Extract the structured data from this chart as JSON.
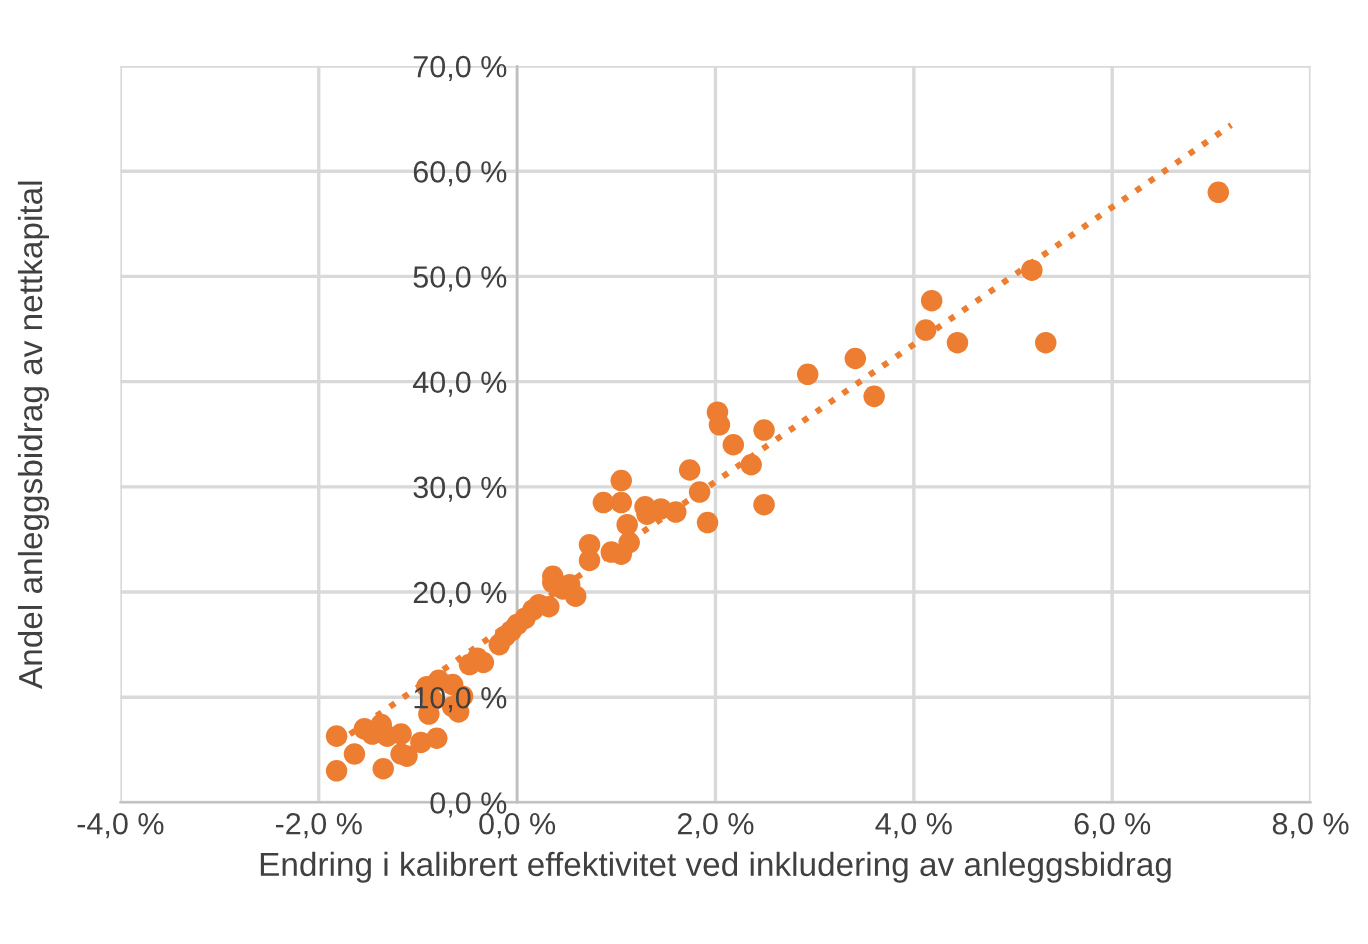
{
  "chart_data": {
    "type": "scatter",
    "xlabel": "Endring i kalibrert effektivitet ved inkludering av anleggsbidrag",
    "ylabel": "Andel anleggsbidrag av nettkapital",
    "xlim": [
      -4,
      8
    ],
    "ylim": [
      0,
      70
    ],
    "xticks": [
      {
        "value": -4,
        "label": "-4,0 %"
      },
      {
        "value": -2,
        "label": "-2,0 %"
      },
      {
        "value": 0,
        "label": "0,0 %"
      },
      {
        "value": 2,
        "label": "2,0 %"
      },
      {
        "value": 4,
        "label": "4,0 %"
      },
      {
        "value": 6,
        "label": "6,0 %"
      },
      {
        "value": 8,
        "label": "8,0 %"
      }
    ],
    "yticks": [
      {
        "value": 0,
        "label": "0,0 %"
      },
      {
        "value": 10,
        "label": "10,0 %"
      },
      {
        "value": 20,
        "label": "20,0 %"
      },
      {
        "value": 30,
        "label": "30,0 %"
      },
      {
        "value": 40,
        "label": "40,0 %"
      },
      {
        "value": 50,
        "label": "50,0 %"
      },
      {
        "value": 60,
        "label": "60,0 %"
      },
      {
        "value": 70,
        "label": "70,0 %"
      }
    ],
    "grid": true,
    "legend": false,
    "marker": "circle",
    "series": [
      {
        "color": "#ed7d31",
        "x": [
          -1.82,
          -1.82,
          -1.64,
          -1.54,
          -1.46,
          -1.37,
          -1.31,
          -1.35,
          -1.17,
          -1.17,
          -1.11,
          -0.97,
          -0.89,
          -0.91,
          -0.79,
          -0.85,
          -0.81,
          -0.65,
          -0.65,
          -0.59,
          -0.55,
          -0.48,
          -0.4,
          -0.34,
          -0.18,
          -0.12,
          -0.06,
          0.0,
          0.08,
          0.16,
          0.22,
          0.32,
          0.36,
          0.46,
          0.53,
          0.59,
          0.36,
          0.73,
          0.73,
          0.95,
          1.05,
          1.13,
          1.11,
          1.05,
          1.05,
          0.87,
          1.31,
          1.29,
          1.45,
          1.6,
          1.74,
          1.84,
          1.92,
          2.02,
          2.04,
          2.18,
          2.36,
          2.49,
          2.49,
          2.93,
          3.41,
          3.6,
          4.12,
          4.18,
          4.44,
          5.19,
          5.33,
          7.07
        ],
        "values": [
          6.3,
          3.0,
          4.6,
          7.0,
          6.5,
          7.4,
          6.3,
          3.2,
          6.5,
          4.6,
          4.4,
          5.7,
          8.4,
          11.0,
          11.6,
          9.7,
          6.1,
          11.2,
          9.1,
          8.6,
          10.1,
          13.1,
          13.7,
          13.3,
          15.0,
          15.8,
          16.3,
          16.9,
          17.5,
          18.3,
          18.8,
          18.6,
          20.9,
          20.3,
          20.7,
          19.6,
          21.5,
          23.0,
          24.5,
          23.8,
          23.6,
          24.7,
          26.4,
          28.5,
          30.6,
          28.5,
          27.4,
          28.1,
          27.9,
          27.6,
          31.6,
          29.5,
          26.6,
          37.1,
          35.9,
          34.0,
          32.1,
          35.4,
          28.3,
          40.7,
          42.2,
          38.6,
          44.9,
          47.7,
          43.7,
          50.6,
          43.7,
          58.0
        ]
      },
      {
        "type": "line",
        "color": "#ed7d31",
        "line_style": "dotted",
        "marker": "none",
        "x": [
          -1.82,
          7.2
        ],
        "values": [
          5.6,
          64.4
        ]
      }
    ]
  }
}
